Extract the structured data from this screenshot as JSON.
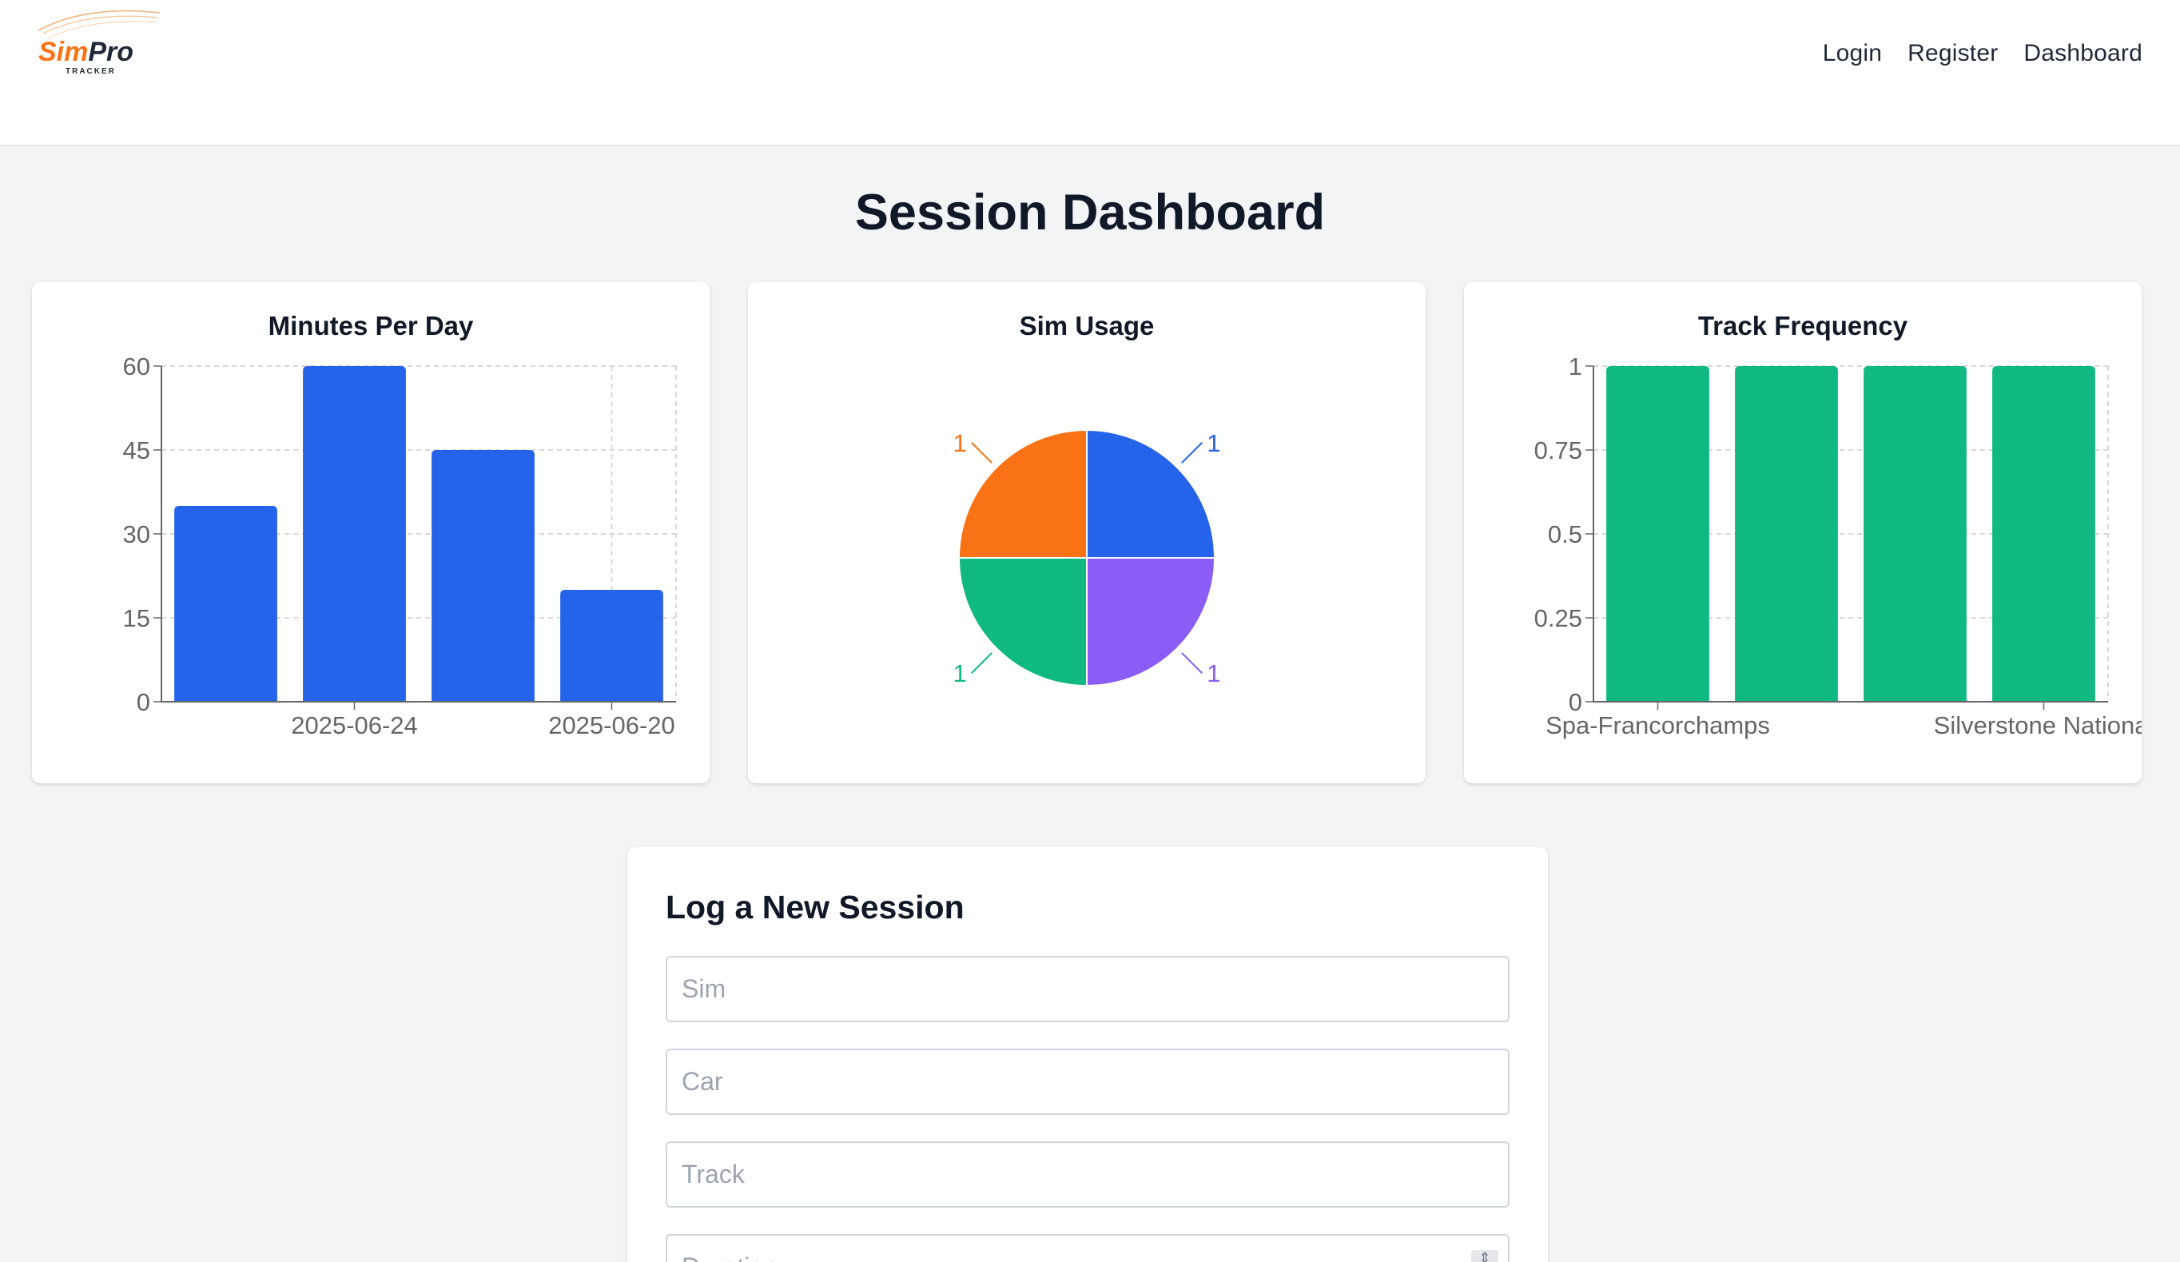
{
  "header": {
    "logo_text": "SimPro",
    "logo_sub": "TRACKER",
    "nav": [
      "Login",
      "Register",
      "Dashboard"
    ]
  },
  "page_title": "Session Dashboard",
  "colors": {
    "blue": "#2563eb",
    "orange": "#f97316",
    "green": "#10b981",
    "purple": "#8b5cf6"
  },
  "chart_data": [
    {
      "type": "bar",
      "title": "Minutes Per Day",
      "categories": [
        "",
        "2025-06-24",
        "",
        "2025-06-20"
      ],
      "values": [
        35,
        60,
        45,
        20
      ],
      "yticks": [
        "0",
        "15",
        "30",
        "45",
        "60"
      ],
      "ylim": [
        0,
        60
      ],
      "grid": true,
      "color": "#2563eb"
    },
    {
      "type": "pie",
      "title": "Sim Usage",
      "slices": [
        {
          "value": 1,
          "label": "1",
          "color": "#2563eb"
        },
        {
          "value": 1,
          "label": "1",
          "color": "#8b5cf6"
        },
        {
          "value": 1,
          "label": "1",
          "color": "#10b981"
        },
        {
          "value": 1,
          "label": "1",
          "color": "#f97316"
        }
      ]
    },
    {
      "type": "bar",
      "title": "Track Frequency",
      "categories": [
        "Spa-Francorchamps",
        "",
        "",
        "Silverstone National"
      ],
      "values": [
        1,
        1,
        1,
        1
      ],
      "yticks": [
        "0",
        "0.25",
        "0.5",
        "0.75",
        "1"
      ],
      "ylim": [
        0,
        1
      ],
      "grid": true,
      "color": "#10b981"
    }
  ],
  "form": {
    "title": "Log a New Session",
    "fields": [
      {
        "placeholder": "Sim"
      },
      {
        "placeholder": "Car"
      },
      {
        "placeholder": "Track"
      },
      {
        "placeholder": "Duration"
      }
    ]
  }
}
